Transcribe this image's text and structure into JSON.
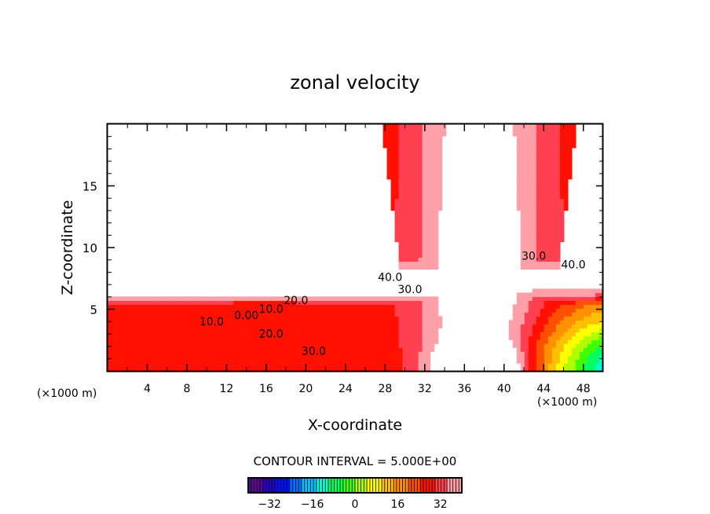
{
  "chart_data": {
    "type": "heatmap",
    "subtype": "filled-contour",
    "title": "zonal velocity",
    "xlabel": "X-coordinate",
    "ylabel": "Z-coordinate",
    "xunit_left": "(×1000 m)",
    "xunit_right": "(×1000 m)",
    "xlim": [
      0,
      50
    ],
    "ylim": [
      0,
      20
    ],
    "xticks": [
      4,
      8,
      12,
      16,
      20,
      24,
      28,
      32,
      36,
      40,
      44,
      48
    ],
    "xtick_labels": [
      "4",
      "8",
      "12",
      "16",
      "20",
      "24",
      "28",
      "32",
      "36",
      "40",
      "44",
      "48"
    ],
    "yticks": [
      5,
      10,
      15
    ],
    "ytick_labels": [
      "5",
      "10",
      "15"
    ],
    "contour_interval_text": "CONTOUR INTERVAL = 5.000E+00",
    "contour_interval": 5,
    "contour_labels": [
      {
        "text": "40.0",
        "x": 28.5,
        "z": 7.3
      },
      {
        "text": "30.0",
        "x": 30.5,
        "z": 6.3
      },
      {
        "text": "20.0",
        "x": 19.0,
        "z": 5.4
      },
      {
        "text": "10.0",
        "x": 16.5,
        "z": 4.7
      },
      {
        "text": "0.00",
        "x": 14.0,
        "z": 4.2
      },
      {
        "text": "10.0",
        "x": 10.5,
        "z": 3.7
      },
      {
        "text": "20.0",
        "x": 16.5,
        "z": 2.7
      },
      {
        "text": "30.0",
        "x": 20.8,
        "z": 1.3
      },
      {
        "text": "30.0",
        "x": 43.0,
        "z": 9.0
      },
      {
        "text": "40.0",
        "x": 47.0,
        "z": 8.3
      }
    ],
    "colorbar": {
      "ticks": [
        -32,
        -16,
        0,
        16,
        32
      ],
      "tick_labels": [
        "−32",
        "−16",
        "0",
        "16",
        "32"
      ],
      "range": [
        -40,
        40
      ],
      "colors": [
        "#5a0a8c",
        "#2a00c8",
        "#0010ff",
        "#0070ff",
        "#00c0ff",
        "#00ffd0",
        "#00ff60",
        "#40ff00",
        "#b0ff00",
        "#ffff00",
        "#ffc000",
        "#ff9000",
        "#ff5000",
        "#ff1000",
        "#ff4050",
        "#ffa0a8"
      ]
    }
  }
}
